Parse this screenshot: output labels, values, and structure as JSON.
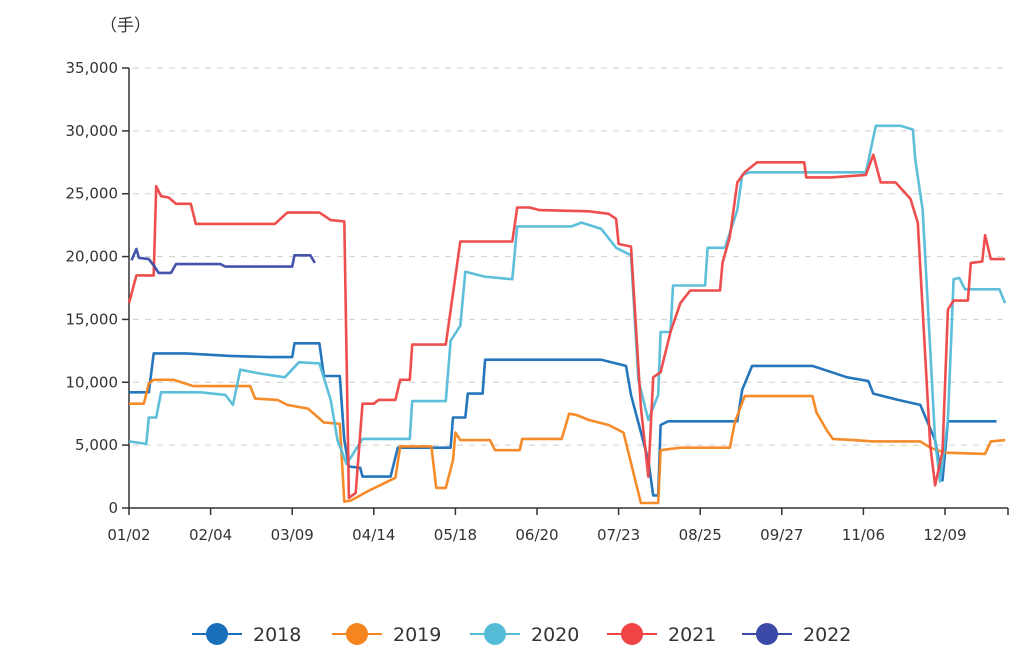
{
  "chart_data": {
    "type": "line",
    "title": "",
    "unit_label": "（手）",
    "xlabel": "",
    "ylabel": "",
    "x_tick_labels": [
      "01/02",
      "02/04",
      "03/09",
      "04/14",
      "05/18",
      "06/20",
      "07/23",
      "08/25",
      "09/27",
      "11/06",
      "12/09"
    ],
    "x_end": "12/31",
    "y_ticks": [
      0,
      5000,
      10000,
      15000,
      20000,
      25000,
      30000,
      35000
    ],
    "y_tick_labels": [
      "0",
      "5,000",
      "10,000",
      "15,000",
      "20,000",
      "25,000",
      "30,000",
      "35,000"
    ],
    "ylim": [
      0,
      35000
    ],
    "grid": "horizontal dashed",
    "legend_position": "bottom",
    "series": [
      {
        "name": "2018",
        "color": "#1a6fba",
        "points": [
          [
            "01/02",
            9200
          ],
          [
            "01/10",
            9200
          ],
          [
            "01/12",
            12300
          ],
          [
            "01/25",
            12300
          ],
          [
            "02/12",
            12100
          ],
          [
            "02/28",
            12000
          ],
          [
            "03/09",
            12000
          ],
          [
            "03/10",
            13100
          ],
          [
            "03/21",
            13100
          ],
          [
            "03/23",
            10500
          ],
          [
            "03/30",
            10500
          ],
          [
            "04/01",
            5400
          ],
          [
            "04/03",
            3300
          ],
          [
            "04/08",
            3200
          ],
          [
            "04/09",
            2500
          ],
          [
            "04/21",
            2500
          ],
          [
            "04/24",
            4800
          ],
          [
            "05/16",
            4800
          ],
          [
            "05/17",
            7200
          ],
          [
            "05/22",
            7200
          ],
          [
            "05/23",
            9100
          ],
          [
            "05/29",
            9100
          ],
          [
            "05/30",
            11800
          ],
          [
            "07/16",
            11800
          ],
          [
            "07/26",
            11300
          ],
          [
            "07/28",
            9000
          ],
          [
            "08/04",
            3800
          ],
          [
            "08/06",
            1000
          ],
          [
            "08/08",
            1000
          ],
          [
            "08/09",
            6600
          ],
          [
            "08/12",
            6900
          ],
          [
            "09/09",
            6900
          ],
          [
            "09/11",
            9400
          ],
          [
            "09/15",
            11300
          ],
          [
            "10/12",
            11300
          ],
          [
            "10/29",
            10400
          ],
          [
            "11/08",
            10100
          ],
          [
            "11/10",
            9100
          ],
          [
            "11/20",
            8600
          ],
          [
            "11/29",
            8200
          ],
          [
            "12/05",
            5400
          ],
          [
            "12/08",
            2200
          ],
          [
            "12/10",
            6900
          ],
          [
            "12/27",
            6900
          ]
        ]
      },
      {
        "name": "2019",
        "color": "#f5851f",
        "points": [
          [
            "01/02",
            8300
          ],
          [
            "01/08",
            8300
          ],
          [
            "01/10",
            9900
          ],
          [
            "01/12",
            10200
          ],
          [
            "01/20",
            10200
          ],
          [
            "01/28",
            9700
          ],
          [
            "02/20",
            9700
          ],
          [
            "02/22",
            8700
          ],
          [
            "03/03",
            8600
          ],
          [
            "03/07",
            8200
          ],
          [
            "03/16",
            7900
          ],
          [
            "03/23",
            6800
          ],
          [
            "03/30",
            6700
          ],
          [
            "04/01",
            500
          ],
          [
            "04/04",
            600
          ],
          [
            "04/12",
            1400
          ],
          [
            "04/23",
            2400
          ],
          [
            "04/25",
            4900
          ],
          [
            "05/08",
            4900
          ],
          [
            "05/10",
            1600
          ],
          [
            "05/14",
            1600
          ],
          [
            "05/17",
            3800
          ],
          [
            "05/18",
            6000
          ],
          [
            "05/20",
            5400
          ],
          [
            "06/01",
            5400
          ],
          [
            "06/03",
            4600
          ],
          [
            "06/13",
            4600
          ],
          [
            "06/14",
            5500
          ],
          [
            "06/30",
            5500
          ],
          [
            "07/03",
            7500
          ],
          [
            "07/06",
            7400
          ],
          [
            "07/11",
            7000
          ],
          [
            "07/19",
            6600
          ],
          [
            "07/25",
            6000
          ],
          [
            "08/01",
            400
          ],
          [
            "08/08",
            400
          ],
          [
            "08/09",
            4600
          ],
          [
            "08/17",
            4800
          ],
          [
            "09/06",
            4800
          ],
          [
            "09/08",
            6800
          ],
          [
            "09/12",
            8900
          ],
          [
            "10/12",
            8900
          ],
          [
            "10/14",
            7600
          ],
          [
            "10/19",
            6200
          ],
          [
            "10/22",
            5500
          ],
          [
            "11/01",
            5400
          ],
          [
            "11/10",
            5300
          ],
          [
            "11/29",
            5300
          ],
          [
            "12/03",
            4800
          ],
          [
            "12/09",
            4400
          ],
          [
            "12/23",
            4300
          ],
          [
            "12/25",
            5300
          ],
          [
            "12/30",
            5400
          ]
        ]
      },
      {
        "name": "2020",
        "color": "#55bcd8",
        "points": [
          [
            "01/02",
            5300
          ],
          [
            "01/09",
            5100
          ],
          [
            "01/10",
            7200
          ],
          [
            "01/13",
            7200
          ],
          [
            "01/15",
            9200
          ],
          [
            "01/31",
            9200
          ],
          [
            "02/10",
            9000
          ],
          [
            "02/13",
            8200
          ],
          [
            "02/16",
            11000
          ],
          [
            "02/24",
            10700
          ],
          [
            "03/06",
            10400
          ],
          [
            "03/12",
            11600
          ],
          [
            "03/21",
            11500
          ],
          [
            "03/26",
            8600
          ],
          [
            "03/29",
            5400
          ],
          [
            "04/02",
            3500
          ],
          [
            "04/09",
            5500
          ],
          [
            "04/29",
            5500
          ],
          [
            "04/30",
            8500
          ],
          [
            "05/14",
            8500
          ],
          [
            "05/16",
            13300
          ],
          [
            "05/20",
            14500
          ],
          [
            "05/22",
            18800
          ],
          [
            "05/30",
            18400
          ],
          [
            "06/10",
            18200
          ],
          [
            "06/12",
            22400
          ],
          [
            "07/04",
            22400
          ],
          [
            "07/08",
            22700
          ],
          [
            "07/16",
            22200
          ],
          [
            "07/22",
            20700
          ],
          [
            "07/28",
            20100
          ],
          [
            "07/31",
            10200
          ],
          [
            "08/04",
            7000
          ],
          [
            "08/08",
            9000
          ],
          [
            "08/09",
            14000
          ],
          [
            "08/13",
            14000
          ],
          [
            "08/14",
            17700
          ],
          [
            "08/27",
            17700
          ],
          [
            "08/28",
            20700
          ],
          [
            "09/04",
            20700
          ],
          [
            "09/09",
            23700
          ],
          [
            "09/11",
            26500
          ],
          [
            "09/14",
            26700
          ],
          [
            "11/07",
            26700
          ],
          [
            "11/11",
            30400
          ],
          [
            "11/21",
            30400
          ],
          [
            "11/26",
            30100
          ],
          [
            "11/27",
            27700
          ],
          [
            "11/30",
            23700
          ],
          [
            "12/05",
            5400
          ],
          [
            "12/07",
            2100
          ],
          [
            "12/10",
            7000
          ],
          [
            "12/12",
            18200
          ],
          [
            "12/14",
            18300
          ],
          [
            "12/16",
            17400
          ],
          [
            "12/28",
            17400
          ],
          [
            "12/30",
            16300
          ]
        ]
      },
      {
        "name": "2021",
        "color": "#ee4444",
        "points": [
          [
            "01/02",
            16300
          ],
          [
            "01/05",
            18500
          ],
          [
            "01/12",
            18500
          ],
          [
            "01/13",
            25600
          ],
          [
            "01/15",
            24800
          ],
          [
            "01/18",
            24700
          ],
          [
            "01/21",
            24200
          ],
          [
            "01/27",
            24200
          ],
          [
            "01/29",
            22600
          ],
          [
            "03/02",
            22600
          ],
          [
            "03/07",
            23500
          ],
          [
            "03/21",
            23500
          ],
          [
            "03/26",
            22900
          ],
          [
            "04/01",
            22800
          ],
          [
            "04/03",
            800
          ],
          [
            "04/06",
            1200
          ],
          [
            "04/09",
            8300
          ],
          [
            "04/14",
            8300
          ],
          [
            "04/16",
            8600
          ],
          [
            "04/23",
            8600
          ],
          [
            "04/25",
            10200
          ],
          [
            "04/29",
            10200
          ],
          [
            "04/30",
            13000
          ],
          [
            "05/14",
            13000
          ],
          [
            "05/20",
            21200
          ],
          [
            "06/10",
            21200
          ],
          [
            "06/12",
            23900
          ],
          [
            "06/17",
            23900
          ],
          [
            "06/21",
            23700
          ],
          [
            "07/11",
            23600
          ],
          [
            "07/19",
            23400
          ],
          [
            "07/22",
            23000
          ],
          [
            "07/23",
            21000
          ],
          [
            "07/28",
            20800
          ],
          [
            "08/01",
            8000
          ],
          [
            "08/04",
            2500
          ],
          [
            "08/06",
            10400
          ],
          [
            "08/09",
            10800
          ],
          [
            "08/13",
            14000
          ],
          [
            "08/17",
            16300
          ],
          [
            "08/21",
            17300
          ],
          [
            "09/02",
            17300
          ],
          [
            "09/03",
            19500
          ],
          [
            "09/06",
            21600
          ],
          [
            "09/09",
            25900
          ],
          [
            "09/12",
            26700
          ],
          [
            "09/17",
            27500
          ],
          [
            "10/08",
            27500
          ],
          [
            "10/09",
            26300
          ],
          [
            "10/21",
            26300
          ],
          [
            "11/07",
            26500
          ],
          [
            "11/10",
            28100
          ],
          [
            "11/13",
            25900
          ],
          [
            "11/19",
            25900
          ],
          [
            "11/25",
            24600
          ],
          [
            "11/28",
            22700
          ],
          [
            "12/03",
            5000
          ],
          [
            "12/05",
            1800
          ],
          [
            "12/08",
            4500
          ],
          [
            "12/10",
            15800
          ],
          [
            "12/12",
            16500
          ],
          [
            "12/17",
            16500
          ],
          [
            "12/18",
            19500
          ],
          [
            "12/22",
            19600
          ],
          [
            "12/23",
            21700
          ],
          [
            "12/25",
            19800
          ],
          [
            "12/30",
            19800
          ]
        ]
      },
      {
        "name": "2022",
        "color": "#3b4aa6",
        "points": [
          [
            "01/03",
            19700
          ],
          [
            "01/05",
            20600
          ],
          [
            "01/06",
            19900
          ],
          [
            "01/10",
            19800
          ],
          [
            "01/12",
            19300
          ],
          [
            "01/14",
            18700
          ],
          [
            "01/19",
            18700
          ],
          [
            "01/21",
            19400
          ],
          [
            "02/08",
            19400
          ],
          [
            "02/10",
            19200
          ],
          [
            "03/09",
            19200
          ],
          [
            "03/10",
            20100
          ],
          [
            "03/17",
            20100
          ],
          [
            "03/19",
            19500
          ]
        ]
      }
    ]
  }
}
